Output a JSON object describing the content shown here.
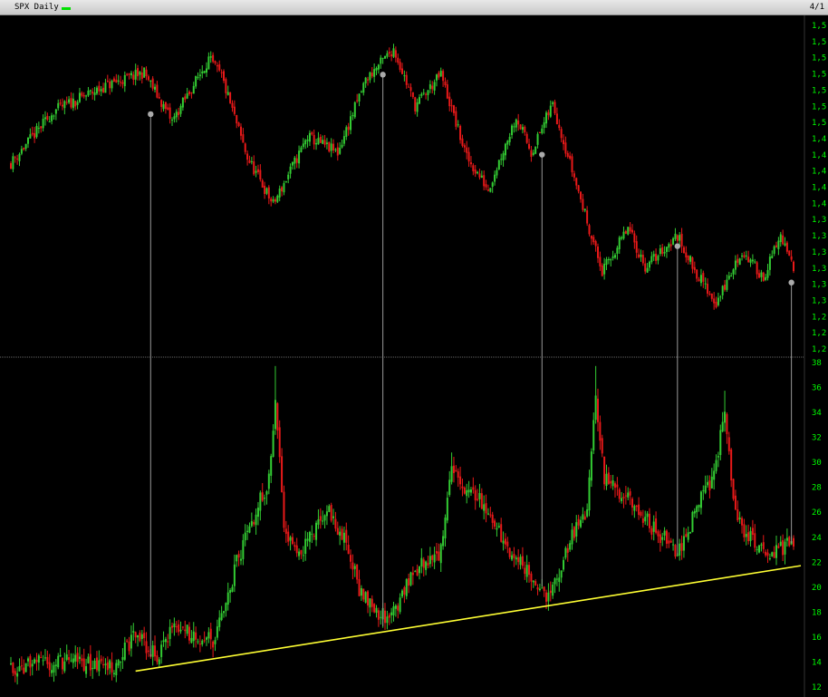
{
  "window": {
    "title": "SPX Daily",
    "date_label": "4/1"
  },
  "colors": {
    "up": "#33cc33",
    "down": "#e81919",
    "trendline": "#ffff33",
    "axis_text": "#00ff00",
    "connector": "#9a9a9a",
    "divider": "#666666"
  },
  "chart_data": [
    {
      "type": "candlestick",
      "title": "SPX Daily",
      "y_tick_labels": [
        "1,5",
        "1,5",
        "1,5",
        "1,5",
        "1,5",
        "1,5",
        "1,5",
        "1,4",
        "1,4",
        "1,4",
        "1,4",
        "1,4",
        "1,3",
        "1,3",
        "1,3",
        "1,3",
        "1,3",
        "1,3",
        "1,2",
        "1,2",
        "1,2"
      ],
      "ylim": [
        1250,
        1570
      ],
      "anchors": [
        {
          "t": 0,
          "v": 1435
        },
        {
          "t": 20,
          "v": 1485
        },
        {
          "t": 45,
          "v": 1510
        },
        {
          "t": 62,
          "v": 1522
        },
        {
          "t": 75,
          "v": 1475
        },
        {
          "t": 92,
          "v": 1535
        },
        {
          "t": 98,
          "v": 1518
        },
        {
          "t": 110,
          "v": 1440
        },
        {
          "t": 122,
          "v": 1395
        },
        {
          "t": 138,
          "v": 1460
        },
        {
          "t": 152,
          "v": 1445
        },
        {
          "t": 165,
          "v": 1515
        },
        {
          "t": 178,
          "v": 1545
        },
        {
          "t": 188,
          "v": 1490
        },
        {
          "t": 200,
          "v": 1520
        },
        {
          "t": 212,
          "v": 1440
        },
        {
          "t": 222,
          "v": 1410
        },
        {
          "t": 235,
          "v": 1480
        },
        {
          "t": 242,
          "v": 1445
        },
        {
          "t": 252,
          "v": 1492
        },
        {
          "t": 265,
          "v": 1400
        },
        {
          "t": 275,
          "v": 1330
        },
        {
          "t": 287,
          "v": 1372
        },
        {
          "t": 295,
          "v": 1335
        },
        {
          "t": 310,
          "v": 1365
        },
        {
          "t": 318,
          "v": 1332
        },
        {
          "t": 328,
          "v": 1300
        },
        {
          "t": 340,
          "v": 1350
        },
        {
          "t": 350,
          "v": 1325
        },
        {
          "t": 358,
          "v": 1365
        },
        {
          "t": 364,
          "v": 1332
        }
      ],
      "markers": [
        {
          "t": 65,
          "v": 1482
        },
        {
          "t": 173,
          "v": 1520
        },
        {
          "t": 247,
          "v": 1443
        },
        {
          "t": 310,
          "v": 1355
        },
        {
          "t": 363,
          "v": 1320
        }
      ]
    },
    {
      "type": "candlestick",
      "y_tick_labels": [
        "38",
        "36",
        "34",
        "32",
        "30",
        "28",
        "26",
        "24",
        "22",
        "20",
        "18",
        "16",
        "14",
        "12"
      ],
      "ylim": [
        11,
        38
      ],
      "anchors": [
        {
          "t": 0,
          "v": 13.2
        },
        {
          "t": 30,
          "v": 13.6
        },
        {
          "t": 48,
          "v": 13.2
        },
        {
          "t": 58,
          "v": 15.8
        },
        {
          "t": 68,
          "v": 13.8
        },
        {
          "t": 75,
          "v": 16.5
        },
        {
          "t": 95,
          "v": 15.2
        },
        {
          "t": 105,
          "v": 21.5
        },
        {
          "t": 118,
          "v": 27.5
        },
        {
          "t": 128,
          "v": 24.2
        },
        {
          "t": 135,
          "v": 22.5
        },
        {
          "t": 148,
          "v": 25.8
        },
        {
          "t": 156,
          "v": 23.0
        },
        {
          "t": 162,
          "v": 19.5
        },
        {
          "t": 175,
          "v": 16.8
        },
        {
          "t": 188,
          "v": 21.0
        },
        {
          "t": 200,
          "v": 22.5
        },
        {
          "t": 208,
          "v": 28.0
        },
        {
          "t": 220,
          "v": 26.5
        },
        {
          "t": 228,
          "v": 23.5
        },
        {
          "t": 240,
          "v": 21.0
        },
        {
          "t": 250,
          "v": 18.5
        },
        {
          "t": 262,
          "v": 24.0
        },
        {
          "t": 275,
          "v": 28.5
        },
        {
          "t": 285,
          "v": 27.0
        },
        {
          "t": 298,
          "v": 24.5
        },
        {
          "t": 310,
          "v": 22.5
        },
        {
          "t": 322,
          "v": 27.0
        },
        {
          "t": 330,
          "v": 30.0
        },
        {
          "t": 340,
          "v": 24.0
        },
        {
          "t": 352,
          "v": 22.5
        },
        {
          "t": 364,
          "v": 23.0
        }
      ],
      "spikes": [
        {
          "t": 123,
          "v": 37.5
        },
        {
          "t": 205,
          "v": 30.5
        },
        {
          "t": 272,
          "v": 37.5
        },
        {
          "t": 332,
          "v": 35.5
        }
      ],
      "trendline": {
        "t0": 58,
        "v0": 12.8,
        "t1": 364,
        "v1": 21.3
      }
    }
  ]
}
